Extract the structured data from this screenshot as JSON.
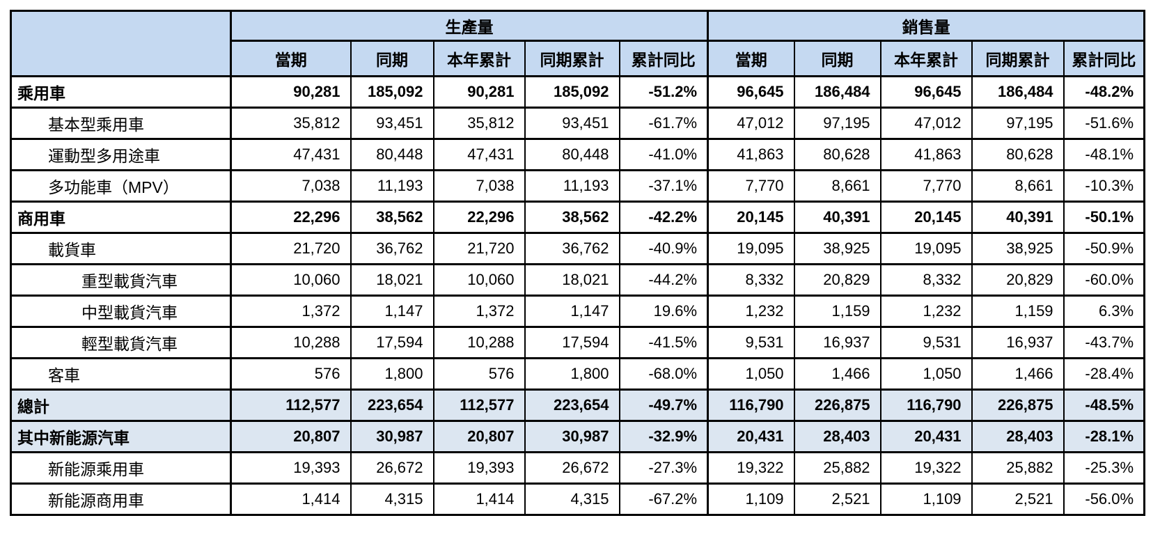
{
  "colors": {
    "header_bg": "#c5d9f1",
    "highlight_bg": "#dce6f1",
    "border": "#000000"
  },
  "table": {
    "corner_label": "",
    "col_groups": [
      {
        "label": "生產量",
        "columns": [
          "當期",
          "同期",
          "本年累計",
          "同期累計",
          "累計同比"
        ]
      },
      {
        "label": "銷售量",
        "columns": [
          "當期",
          "同期",
          "本年累計",
          "同期累計",
          "累計同比"
        ]
      }
    ],
    "rows": [
      {
        "label": "乘用車",
        "indent": 0,
        "bold": true,
        "highlight": false,
        "production": [
          "90,281",
          "185,092",
          "90,281",
          "185,092",
          "-51.2%"
        ],
        "sales": [
          "96,645",
          "186,484",
          "96,645",
          "186,484",
          "-48.2%"
        ]
      },
      {
        "label": "基本型乘用車",
        "indent": 1,
        "bold": false,
        "highlight": false,
        "production": [
          "35,812",
          "93,451",
          "35,812",
          "93,451",
          "-61.7%"
        ],
        "sales": [
          "47,012",
          "97,195",
          "47,012",
          "97,195",
          "-51.6%"
        ]
      },
      {
        "label": "運動型多用途車",
        "indent": 1,
        "bold": false,
        "highlight": false,
        "production": [
          "47,431",
          "80,448",
          "47,431",
          "80,448",
          "-41.0%"
        ],
        "sales": [
          "41,863",
          "80,628",
          "41,863",
          "80,628",
          "-48.1%"
        ]
      },
      {
        "label": "多功能車（MPV）",
        "indent": 1,
        "bold": false,
        "highlight": false,
        "production": [
          "7,038",
          "11,193",
          "7,038",
          "11,193",
          "-37.1%"
        ],
        "sales": [
          "7,770",
          "8,661",
          "7,770",
          "8,661",
          "-10.3%"
        ]
      },
      {
        "label": "商用車",
        "indent": 0,
        "bold": true,
        "highlight": false,
        "production": [
          "22,296",
          "38,562",
          "22,296",
          "38,562",
          "-42.2%"
        ],
        "sales": [
          "20,145",
          "40,391",
          "20,145",
          "40,391",
          "-50.1%"
        ]
      },
      {
        "label": "載貨車",
        "indent": 1,
        "bold": false,
        "highlight": false,
        "production": [
          "21,720",
          "36,762",
          "21,720",
          "36,762",
          "-40.9%"
        ],
        "sales": [
          "19,095",
          "38,925",
          "19,095",
          "38,925",
          "-50.9%"
        ]
      },
      {
        "label": "重型載貨汽車",
        "indent": 2,
        "bold": false,
        "highlight": false,
        "production": [
          "10,060",
          "18,021",
          "10,060",
          "18,021",
          "-44.2%"
        ],
        "sales": [
          "8,332",
          "20,829",
          "8,332",
          "20,829",
          "-60.0%"
        ]
      },
      {
        "label": "中型載貨汽車",
        "indent": 2,
        "bold": false,
        "highlight": false,
        "production": [
          "1,372",
          "1,147",
          "1,372",
          "1,147",
          "19.6%"
        ],
        "sales": [
          "1,232",
          "1,159",
          "1,232",
          "1,159",
          "6.3%"
        ]
      },
      {
        "label": "輕型載貨汽車",
        "indent": 2,
        "bold": false,
        "highlight": false,
        "production": [
          "10,288",
          "17,594",
          "10,288",
          "17,594",
          "-41.5%"
        ],
        "sales": [
          "9,531",
          "16,937",
          "9,531",
          "16,937",
          "-43.7%"
        ]
      },
      {
        "label": "客車",
        "indent": 1,
        "bold": false,
        "highlight": false,
        "production": [
          "576",
          "1,800",
          "576",
          "1,800",
          "-68.0%"
        ],
        "sales": [
          "1,050",
          "1,466",
          "1,050",
          "1,466",
          "-28.4%"
        ]
      },
      {
        "label": "總計",
        "indent": 0,
        "bold": true,
        "highlight": true,
        "production": [
          "112,577",
          "223,654",
          "112,577",
          "223,654",
          "-49.7%"
        ],
        "sales": [
          "116,790",
          "226,875",
          "116,790",
          "226,875",
          "-48.5%"
        ]
      },
      {
        "label": "其中新能源汽車",
        "indent": 0,
        "bold": true,
        "highlight": true,
        "production": [
          "20,807",
          "30,987",
          "20,807",
          "30,987",
          "-32.9%"
        ],
        "sales": [
          "20,431",
          "28,403",
          "20,431",
          "28,403",
          "-28.1%"
        ]
      },
      {
        "label": "新能源乘用車",
        "indent": 1,
        "bold": false,
        "highlight": false,
        "production": [
          "19,393",
          "26,672",
          "19,393",
          "26,672",
          "-27.3%"
        ],
        "sales": [
          "19,322",
          "25,882",
          "19,322",
          "25,882",
          "-25.3%"
        ]
      },
      {
        "label": "新能源商用車",
        "indent": 1,
        "bold": false,
        "highlight": false,
        "production": [
          "1,414",
          "4,315",
          "1,414",
          "4,315",
          "-67.2%"
        ],
        "sales": [
          "1,109",
          "2,521",
          "1,109",
          "2,521",
          "-56.0%"
        ]
      }
    ]
  }
}
